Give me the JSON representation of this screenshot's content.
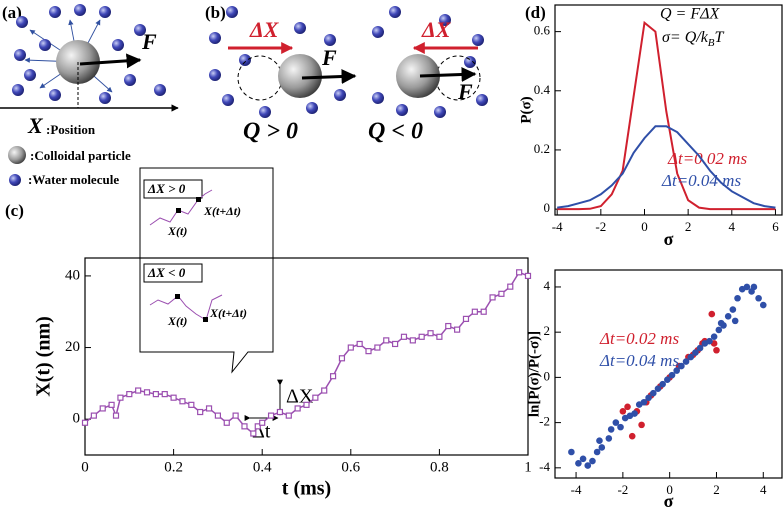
{
  "panels": {
    "a": "(a)",
    "b": "(b)",
    "c": "(c)",
    "d": "(d)"
  },
  "diagram": {
    "force": "F",
    "position": "X",
    "position_label": ":Position",
    "legend": [
      ":Colloidal particle",
      ":Water molecule"
    ],
    "delta_x": "ΔX",
    "q_pos": "Q > 0",
    "q_neg": "Q < 0"
  },
  "chart_data": [
    {
      "type": "line",
      "xlabel": "t (ms)",
      "ylabel": "X(t) (nm)",
      "markers": "square",
      "x": [
        0,
        0.02,
        0.04,
        0.06,
        0.07,
        0.08,
        0.1,
        0.12,
        0.14,
        0.16,
        0.18,
        0.2,
        0.22,
        0.24,
        0.26,
        0.28,
        0.3,
        0.32,
        0.34,
        0.36,
        0.38,
        0.39,
        0.4,
        0.42,
        0.44,
        0.46,
        0.48,
        0.5,
        0.52,
        0.54,
        0.56,
        0.58,
        0.6,
        0.62,
        0.64,
        0.66,
        0.68,
        0.7,
        0.72,
        0.74,
        0.76,
        0.78,
        0.8,
        0.82,
        0.84,
        0.86,
        0.88,
        0.9,
        0.92,
        0.94,
        0.96,
        0.98,
        1
      ],
      "series": [
        {
          "color": "#9b4fb0",
          "values": [
            -1,
            1,
            3,
            4,
            1,
            6,
            7,
            8,
            7.5,
            7,
            7,
            6,
            5,
            4,
            2,
            3,
            1,
            -1,
            1,
            -2,
            -4,
            -2,
            -1,
            1,
            2,
            1,
            3,
            4,
            6,
            8,
            12,
            17,
            20,
            21,
            19,
            20,
            22,
            21,
            23,
            22,
            23,
            24,
            23,
            26,
            25,
            28,
            30,
            30,
            34,
            35,
            37,
            41,
            40
          ]
        }
      ],
      "xlim": [
        0,
        1
      ],
      "xticks": [
        0,
        0.2,
        0.4,
        0.6,
        0.8,
        1
      ],
      "ylim": [
        -10,
        45
      ],
      "yticks": [
        0,
        20,
        40
      ],
      "annotations": {
        "delta_x": "ΔX",
        "delta_t": "Δt",
        "inset_pos": "ΔX > 0",
        "inset_neg": "ΔX < 0",
        "x_t": "X(t)",
        "x_t_dt": "X(t+Δt)"
      }
    },
    {
      "type": "line",
      "xlabel": "σ",
      "ylabel": "P(σ)",
      "x": [
        -4,
        -3.5,
        -3,
        -2.5,
        -2,
        -1.5,
        -1,
        -0.5,
        0,
        0.5,
        1,
        1.5,
        2,
        2.5,
        3,
        3.5,
        4,
        4.5,
        5,
        5.5,
        6
      ],
      "series": [
        {
          "name": "Δt=0.02 ms",
          "color": "#d0202e",
          "values": [
            0,
            0,
            0,
            0.001,
            0.01,
            0.05,
            0.13,
            0.38,
            0.63,
            0.6,
            0.33,
            0.12,
            0.03,
            0.005,
            0,
            0,
            0,
            0,
            0,
            0,
            0
          ]
        },
        {
          "name": "Δt=0.04 ms",
          "color": "#2f4fa8",
          "values": [
            0.005,
            0.01,
            0.02,
            0.03,
            0.05,
            0.08,
            0.12,
            0.19,
            0.24,
            0.28,
            0.28,
            0.26,
            0.22,
            0.18,
            0.13,
            0.09,
            0.06,
            0.04,
            0.02,
            0.01,
            0.005
          ]
        }
      ],
      "xlim": [
        -4.1,
        6.3
      ],
      "xticks": [
        -4,
        -2,
        0,
        2,
        4,
        6
      ],
      "ylim": [
        -0.02,
        0.69
      ],
      "yticks": [
        0,
        0.2,
        0.4,
        0.6
      ],
      "annotations": {
        "formula_q": "Q = FΔX",
        "formula_sigma": "σ= Q/k",
        "formula_sub": "B",
        "formula_end": "T"
      }
    },
    {
      "type": "scatter",
      "xlabel": "σ",
      "ylabel": "ln[P(σ)/P(-σ)]",
      "series": [
        {
          "name": "Δt=0.02 ms",
          "color": "#d0202e",
          "x": [
            -2,
            -1.8,
            -1.6,
            -1.4,
            -1,
            -0.8,
            -0.4,
            0,
            0.4,
            0.8,
            1,
            1.2,
            1.5,
            1.8,
            1.9,
            2,
            -1.2,
            1.4
          ],
          "values": [
            -1.5,
            -1.3,
            -2.6,
            -1.5,
            -1.1,
            -0.8,
            -0.4,
            0,
            0.5,
            0.9,
            1,
            1.2,
            1.6,
            2.8,
            1.5,
            1.2,
            -2.1,
            1.5
          ]
        },
        {
          "name": "Δt=0.04 ms",
          "color": "#2f4fa8",
          "x": [
            -4.2,
            -3.9,
            -3.7,
            -3.5,
            -3.3,
            -3,
            -2.9,
            -2.6,
            -2.5,
            -2.3,
            -2.1,
            -1.9,
            -1.7,
            -1.5,
            -1.3,
            -1.1,
            -0.9,
            -0.7,
            -0.5,
            -0.3,
            -0.1,
            0.1,
            0.3,
            0.5,
            0.7,
            0.9,
            1.1,
            1.3,
            1.5,
            1.7,
            1.9,
            2.1,
            2.3,
            2.5,
            2.7,
            2.9,
            3.1,
            3.3,
            3.5,
            3.6,
            3.8,
            4,
            2.8,
            2.2,
            -3.1
          ],
          "values": [
            -3.3,
            -3.8,
            -3.6,
            -3.9,
            -3.7,
            -2.8,
            -3.1,
            -2.7,
            -2.3,
            -2,
            -2.2,
            -1.8,
            -1.7,
            -1.6,
            -1.2,
            -1.1,
            -0.9,
            -0.7,
            -0.5,
            -0.3,
            -0.1,
            0.1,
            0.3,
            0.5,
            0.7,
            0.9,
            1.1,
            1.3,
            1.5,
            1.6,
            1.8,
            2.1,
            2.3,
            2.7,
            3,
            3.5,
            3.9,
            4,
            3.8,
            4,
            3.5,
            3.2,
            2.5,
            2.4,
            -3.3
          ]
        }
      ],
      "xlim": [
        -4.9,
        4.8
      ],
      "xticks": [
        -4,
        -2,
        0,
        2,
        4
      ],
      "ylim": [
        -4.45,
        4.75
      ],
      "yticks": [
        -4,
        -2,
        0,
        2,
        4
      ]
    }
  ]
}
